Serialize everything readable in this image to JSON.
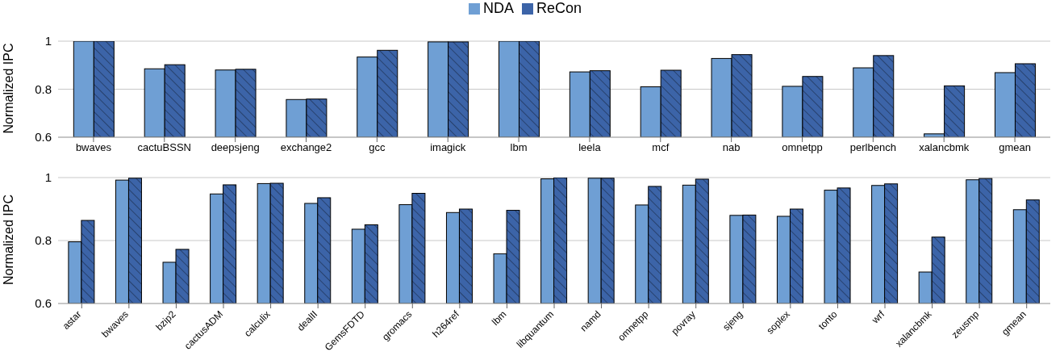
{
  "chart_data": [
    {
      "type": "bar",
      "ylabel": "Normalized IPC",
      "categories": [
        "bwaves",
        "cactuBSSN",
        "deepsjeng",
        "exchange2",
        "gcc",
        "imagick",
        "lbm",
        "leela",
        "mcf",
        "nab",
        "omnetpp",
        "perlbench",
        "xalancbmk",
        "gmean"
      ],
      "ylim": [
        0.6,
        1
      ],
      "yticks": [
        0.6,
        0.8,
        1
      ],
      "grid": "y",
      "legend": "top",
      "series": [
        {
          "name": "NDA",
          "color": "#6f9fd4",
          "values": [
            1,
            0.885,
            0.88,
            0.757,
            0.934,
            0.997,
            1,
            0.872,
            0.81,
            0.928,
            0.812,
            0.889,
            0.614,
            0.869
          ]
        },
        {
          "name": "ReCon",
          "color": "#3c64a8",
          "values": [
            1,
            0.902,
            0.883,
            0.759,
            0.962,
            0.997,
            1,
            0.877,
            0.879,
            0.944,
            0.853,
            0.94,
            0.814,
            0.906
          ]
        }
      ]
    },
    {
      "type": "bar",
      "ylabel": "Normalized IPC",
      "categories": [
        "astar",
        "bwaves",
        "bzip2",
        "cactusADM",
        "calculix",
        "dealII",
        "GemsFDTD",
        "gromacs",
        "h264ref",
        "lbm",
        "libquantum",
        "namd",
        "omnetpp",
        "povray",
        "sjeng",
        "soplex",
        "tonto",
        "wrf",
        "xalancbmk",
        "zeusmp",
        "gmean"
      ],
      "ylim": [
        0.6,
        1
      ],
      "yticks": [
        0.6,
        0.8,
        1
      ],
      "grid": "y",
      "series": [
        {
          "color": "#6f9fd4",
          "values": [
            0.796,
            0.992,
            0.731,
            0.948,
            0.981,
            0.918,
            0.836,
            0.914,
            0.889,
            0.758,
            0.996,
            0.998,
            0.913,
            0.976,
            0.88,
            0.877,
            0.96,
            0.975,
            0.7,
            0.993,
            0.898
          ]
        },
        {
          "color": "#3c64a8",
          "values": [
            0.864,
            0.998,
            0.772,
            0.977,
            0.982,
            0.936,
            0.85,
            0.95,
            0.9,
            0.896,
            1,
            0.998,
            0.972,
            0.995,
            0.881,
            0.9,
            0.967,
            0.98,
            0.811,
            0.997,
            0.929
          ]
        }
      ]
    }
  ]
}
